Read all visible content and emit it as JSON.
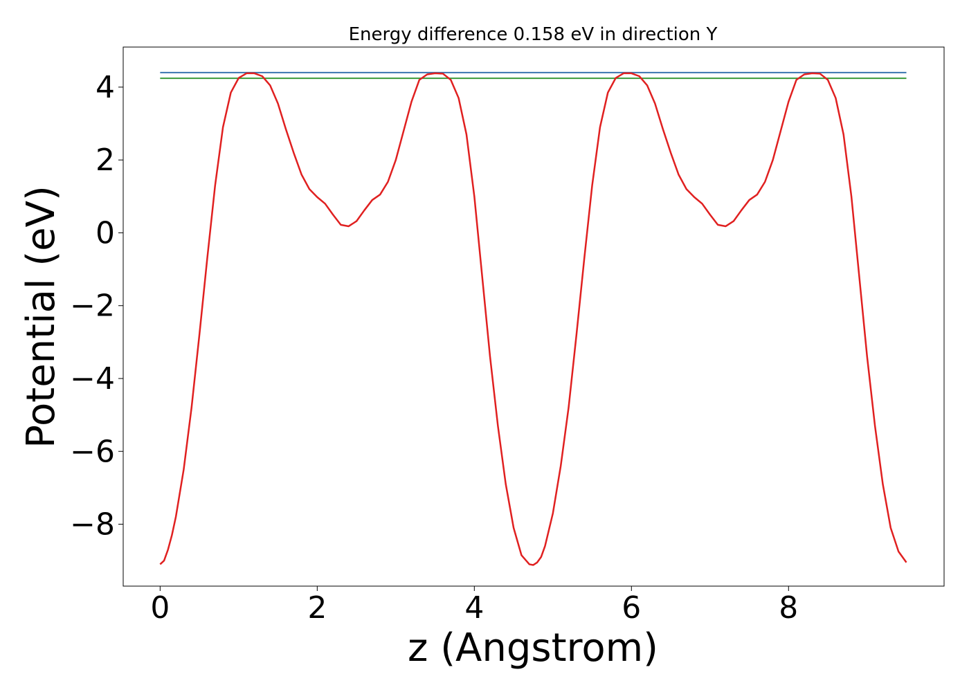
{
  "chart_data": {
    "type": "line",
    "title": "Energy difference 0.158 eV in direction Y",
    "xlabel": "z (Angstrom)",
    "ylabel": "Potential (eV)",
    "xlim": [
      -0.47,
      9.98
    ],
    "ylim": [
      -9.7,
      5.1
    ],
    "xticks": [
      {
        "value": 0,
        "label": "0"
      },
      {
        "value": 2,
        "label": "2"
      },
      {
        "value": 4,
        "label": "4"
      },
      {
        "value": 6,
        "label": "6"
      },
      {
        "value": 8,
        "label": "8"
      }
    ],
    "yticks": [
      {
        "value": 4,
        "label": "4"
      },
      {
        "value": 2,
        "label": "2"
      },
      {
        "value": 0,
        "label": "0"
      },
      {
        "value": -2,
        "label": "−2"
      },
      {
        "value": -4,
        "label": "−4"
      },
      {
        "value": -6,
        "label": "−6"
      },
      {
        "value": -8,
        "label": "−8"
      }
    ],
    "grid": false,
    "legend": "none",
    "hlines": [
      {
        "y": 4.4,
        "x": [
          0,
          9.5
        ],
        "color": "#3a75b0"
      },
      {
        "y": 4.242,
        "x": [
          0,
          9.5
        ],
        "color": "#3a9a3a"
      }
    ],
    "series": [
      {
        "color": "#e02020",
        "x": [
          0.0,
          0.05,
          0.1,
          0.15,
          0.2,
          0.3,
          0.4,
          0.5,
          0.6,
          0.7,
          0.8,
          0.9,
          1.0,
          1.1,
          1.2,
          1.3,
          1.4,
          1.5,
          1.6,
          1.7,
          1.8,
          1.9,
          2.0,
          2.1,
          2.2,
          2.3,
          2.4,
          2.5,
          2.6,
          2.7,
          2.8,
          2.9,
          3.0,
          3.1,
          3.2,
          3.3,
          3.4,
          3.5,
          3.6,
          3.7,
          3.8,
          3.9,
          4.0,
          4.1,
          4.2,
          4.3,
          4.4,
          4.5,
          4.6,
          4.7,
          4.75,
          4.8,
          4.85,
          4.9,
          5.0,
          5.1,
          5.2,
          5.3,
          5.4,
          5.5,
          5.6,
          5.7,
          5.8,
          5.9,
          6.0,
          6.1,
          6.2,
          6.3,
          6.4,
          6.5,
          6.6,
          6.7,
          6.8,
          6.9,
          7.0,
          7.1,
          7.2,
          7.3,
          7.4,
          7.5,
          7.6,
          7.7,
          7.8,
          7.9,
          8.0,
          8.1,
          8.2,
          8.3,
          8.4,
          8.5,
          8.6,
          8.7,
          8.8,
          8.9,
          9.0,
          9.1,
          9.2,
          9.3,
          9.4,
          9.5
        ],
        "y": [
          -9.1,
          -9.0,
          -8.7,
          -8.3,
          -7.8,
          -6.5,
          -4.8,
          -2.8,
          -0.7,
          1.3,
          2.9,
          3.85,
          4.25,
          4.38,
          4.38,
          4.3,
          4.05,
          3.55,
          2.85,
          2.2,
          1.6,
          1.2,
          0.98,
          0.8,
          0.5,
          0.22,
          0.18,
          0.32,
          0.62,
          0.9,
          1.05,
          1.4,
          2.0,
          2.8,
          3.6,
          4.2,
          4.35,
          4.38,
          4.37,
          4.2,
          3.7,
          2.7,
          1.0,
          -1.2,
          -3.4,
          -5.3,
          -6.9,
          -8.1,
          -8.85,
          -9.1,
          -9.12,
          -9.05,
          -8.9,
          -8.6,
          -7.7,
          -6.4,
          -4.8,
          -2.8,
          -0.7,
          1.3,
          2.9,
          3.85,
          4.25,
          4.38,
          4.38,
          4.3,
          4.05,
          3.55,
          2.85,
          2.2,
          1.6,
          1.2,
          0.98,
          0.8,
          0.5,
          0.22,
          0.18,
          0.32,
          0.62,
          0.9,
          1.05,
          1.4,
          2.0,
          2.8,
          3.6,
          4.2,
          4.35,
          4.38,
          4.37,
          4.2,
          3.7,
          2.7,
          1.0,
          -1.2,
          -3.4,
          -5.3,
          -6.9,
          -8.1,
          -8.75,
          -9.05
        ]
      }
    ]
  }
}
